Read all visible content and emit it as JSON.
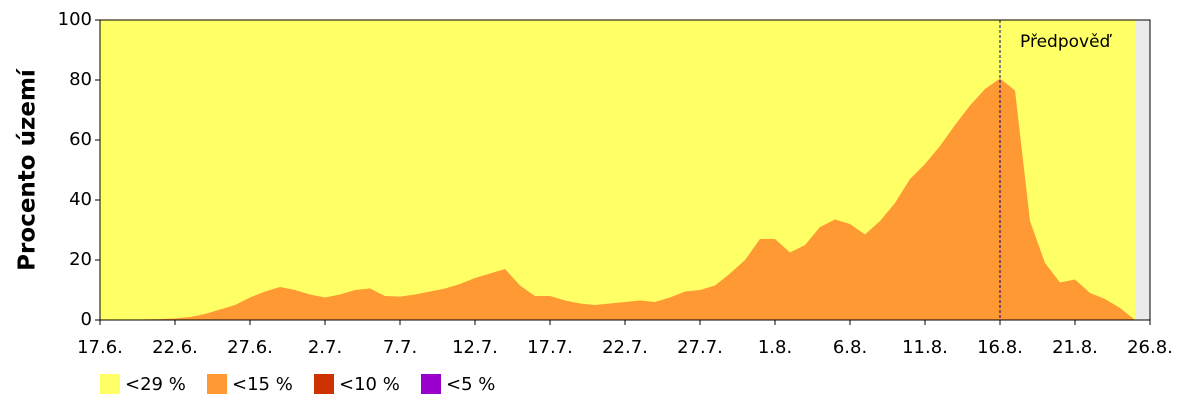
{
  "chart_data": {
    "type": "area",
    "y_label": "Procento území",
    "categories": [
      "17.6.",
      null,
      null,
      null,
      null,
      "22.6.",
      null,
      null,
      null,
      null,
      "27.6.",
      null,
      null,
      null,
      null,
      "2.7.",
      null,
      null,
      null,
      null,
      "7.7.",
      null,
      null,
      null,
      null,
      "12.7.",
      null,
      null,
      null,
      null,
      "17.7.",
      null,
      null,
      null,
      null,
      "22.7.",
      null,
      null,
      null,
      null,
      "27.7.",
      null,
      null,
      null,
      null,
      "1.8.",
      null,
      null,
      null,
      null,
      "6.8.",
      null,
      null,
      null,
      null,
      "11.8.",
      null,
      null,
      null,
      null,
      "16.8.",
      null,
      null,
      null,
      null,
      "21.8.",
      null,
      null,
      null,
      null,
      "26.8."
    ],
    "series": [
      {
        "name": "<29 %",
        "color": "#ffff66",
        "values": [
          100,
          100,
          100,
          100,
          100,
          100,
          100,
          100,
          100,
          100,
          100,
          100,
          100,
          100,
          100,
          100,
          100,
          100,
          100,
          100,
          100,
          100,
          100,
          100,
          100,
          100,
          100,
          100,
          100,
          100,
          100,
          100,
          100,
          100,
          100,
          100,
          100,
          100,
          100,
          100,
          100,
          100,
          100,
          100,
          100,
          100,
          100,
          100,
          100,
          100,
          100,
          100,
          100,
          100,
          100,
          100,
          100,
          100,
          100,
          100,
          100,
          100,
          100,
          100,
          100,
          100,
          100,
          100,
          100,
          100,
          null
        ]
      },
      {
        "name": "<15 %",
        "color": "#ff9933",
        "values": [
          0,
          0,
          0,
          0.2,
          0.3,
          0.5,
          1,
          2,
          3.5,
          5,
          7.5,
          9.5,
          11,
          10,
          8.5,
          7.5,
          8.5,
          10,
          10.5,
          8,
          7.8,
          8.5,
          9.5,
          10.5,
          12,
          14,
          15.5,
          17,
          11.5,
          8,
          8,
          6.5,
          5.5,
          5,
          5.5,
          6,
          6.5,
          6,
          7.5,
          9.5,
          10,
          11.5,
          15.5,
          20,
          27,
          27,
          22.5,
          25,
          31,
          33.5,
          32,
          28.5,
          33,
          39,
          47,
          52,
          58,
          65,
          71.5,
          77,
          80.5,
          76.5,
          33,
          19,
          12.5,
          13.5,
          9,
          7,
          4,
          0,
          null
        ]
      },
      {
        "name": "<10 %",
        "color": "#cc3300",
        "values": [
          0,
          0,
          0,
          0,
          0,
          0,
          0,
          0,
          0,
          0,
          0,
          0,
          0,
          0,
          0,
          0,
          0,
          0,
          0,
          0,
          0,
          0,
          0,
          0,
          0,
          0,
          0,
          0,
          0,
          0,
          0,
          0,
          0,
          0,
          0,
          0,
          0,
          0,
          0,
          0,
          0,
          0,
          0,
          0,
          0,
          0,
          0,
          0,
          0,
          0,
          0,
          0,
          0,
          0,
          0,
          0,
          0,
          0,
          0,
          0,
          0,
          0,
          0,
          0,
          0,
          0,
          0,
          0,
          0,
          0,
          null
        ]
      },
      {
        "name": "<5 %",
        "color": "#9900cc",
        "values": [
          0,
          0,
          0,
          0,
          0,
          0,
          0,
          0,
          0,
          0,
          0,
          0,
          0,
          0,
          0,
          0,
          0,
          0,
          0,
          0,
          0,
          0,
          0,
          0,
          0,
          0,
          0,
          0,
          0,
          0,
          0,
          0,
          0,
          0,
          0,
          0,
          0,
          0,
          0,
          0,
          0,
          0,
          0,
          0,
          0,
          0,
          0,
          0,
          0,
          0,
          0,
          0,
          0,
          0,
          0,
          0,
          0,
          0,
          0,
          0,
          0,
          0,
          0,
          0,
          0,
          0,
          0,
          0,
          0,
          0,
          null
        ]
      }
    ],
    "ylim": [
      0,
      100
    ],
    "yticks": [
      0,
      20,
      40,
      60,
      80,
      100
    ],
    "forecast": {
      "text": "Předpověď",
      "x": "16.8."
    }
  }
}
